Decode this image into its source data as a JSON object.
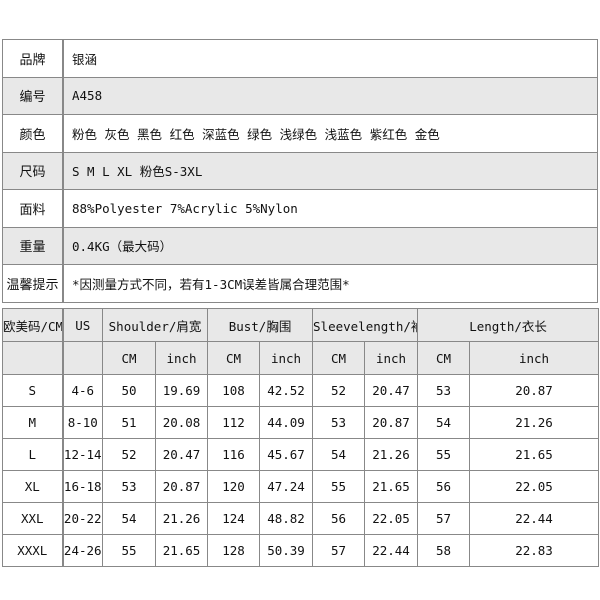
{
  "info": [
    {
      "label": "品牌",
      "value": "银涵"
    },
    {
      "label": "编号",
      "value": "A458"
    },
    {
      "label": "颜色",
      "value": "粉色 灰色 黑色 红色 深蓝色 绿色 浅绿色 浅蓝色 紫红色 金色"
    },
    {
      "label": "尺码",
      "value": "S M L XL  粉色S-3XL"
    },
    {
      "label": "面料",
      "value": "88%Polyester  7%Acrylic  5%Nylon"
    },
    {
      "label": "重量",
      "value": "0.4KG（最大码）"
    },
    {
      "label": "温馨提示",
      "value": "*因测量方式不同，若有1-3CM误差皆属合理范围*"
    }
  ],
  "size_table": {
    "headers": [
      "欧美码/CM",
      "US",
      "Shoulder/肩宽",
      "Bust/胸围",
      "Sleevelength/袖长",
      "Length/衣长"
    ],
    "units": [
      "CM",
      "inch",
      "CM",
      "inch",
      "CM",
      "inch",
      "CM",
      "inch"
    ],
    "rows": [
      [
        "S",
        "4-6",
        "50",
        "19.69",
        "108",
        "42.52",
        "52",
        "20.47",
        "53",
        "20.87"
      ],
      [
        "M",
        "8-10",
        "51",
        "20.08",
        "112",
        "44.09",
        "53",
        "20.87",
        "54",
        "21.26"
      ],
      [
        "L",
        "12-14",
        "52",
        "20.47",
        "116",
        "45.67",
        "54",
        "21.26",
        "55",
        "21.65"
      ],
      [
        "XL",
        "16-18",
        "53",
        "20.87",
        "120",
        "47.24",
        "55",
        "21.65",
        "56",
        "22.05"
      ],
      [
        "XXL",
        "20-22",
        "54",
        "21.26",
        "124",
        "48.82",
        "56",
        "22.05",
        "57",
        "22.44"
      ],
      [
        "XXXL",
        "24-26",
        "55",
        "21.65",
        "128",
        "50.39",
        "57",
        "22.44",
        "58",
        "22.83"
      ]
    ]
  },
  "colors": {
    "header_bg": "#e8e8e8",
    "border": "#888888"
  }
}
